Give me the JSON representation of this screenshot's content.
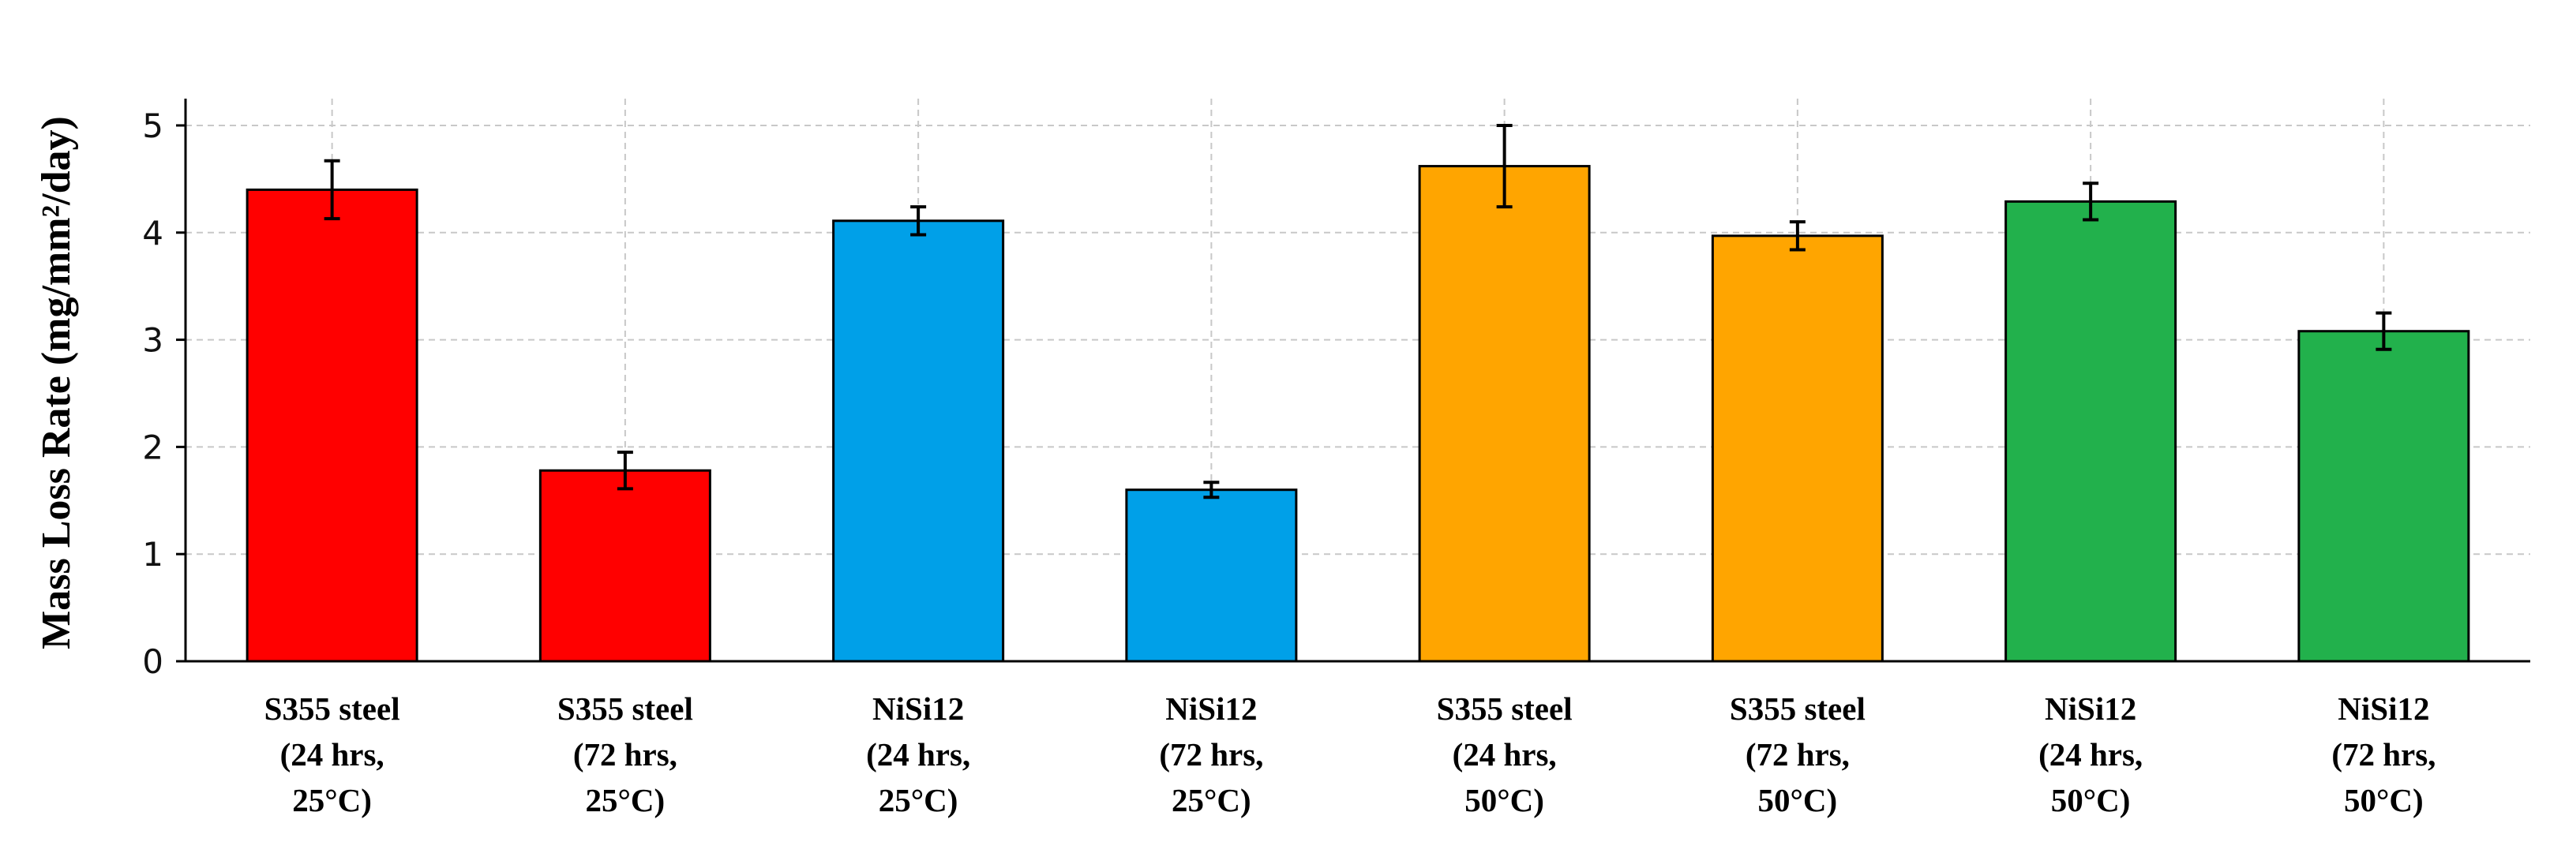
{
  "chart_data": {
    "type": "bar",
    "title": "",
    "xlabel": "",
    "ylabel": "Mass Loss Rate (mg/mm²/day)",
    "ylim": [
      0,
      5.25
    ],
    "yticks": [
      "0",
      "1",
      "2",
      "3",
      "4",
      "5"
    ],
    "grid": true,
    "categories": [
      [
        "S355 steel",
        "(24 hrs,",
        "25°C)"
      ],
      [
        "S355 steel",
        "(72 hrs,",
        "25°C)"
      ],
      [
        "NiSi12",
        "(24 hrs,",
        "25°C)"
      ],
      [
        "NiSi12",
        "(72 hrs,",
        "25°C)"
      ],
      [
        "S355 steel",
        "(24 hrs,",
        "50°C)"
      ],
      [
        "S355 steel",
        "(72 hrs,",
        "50°C)"
      ],
      [
        "NiSi12",
        "(24 hrs,",
        "50°C)"
      ],
      [
        "NiSi12",
        "(72 hrs,",
        "50°C)"
      ]
    ],
    "values": [
      4.4,
      1.78,
      4.11,
      1.6,
      4.62,
      3.97,
      4.29,
      3.08
    ],
    "errors": [
      0.27,
      0.17,
      0.13,
      0.07,
      0.38,
      0.13,
      0.17,
      0.17
    ],
    "colors": [
      "#ff0000",
      "#ff0000",
      "#00a0e8",
      "#00a0e8",
      "#ffa500",
      "#ffa500",
      "#22b14c",
      "#22b14c"
    ]
  }
}
